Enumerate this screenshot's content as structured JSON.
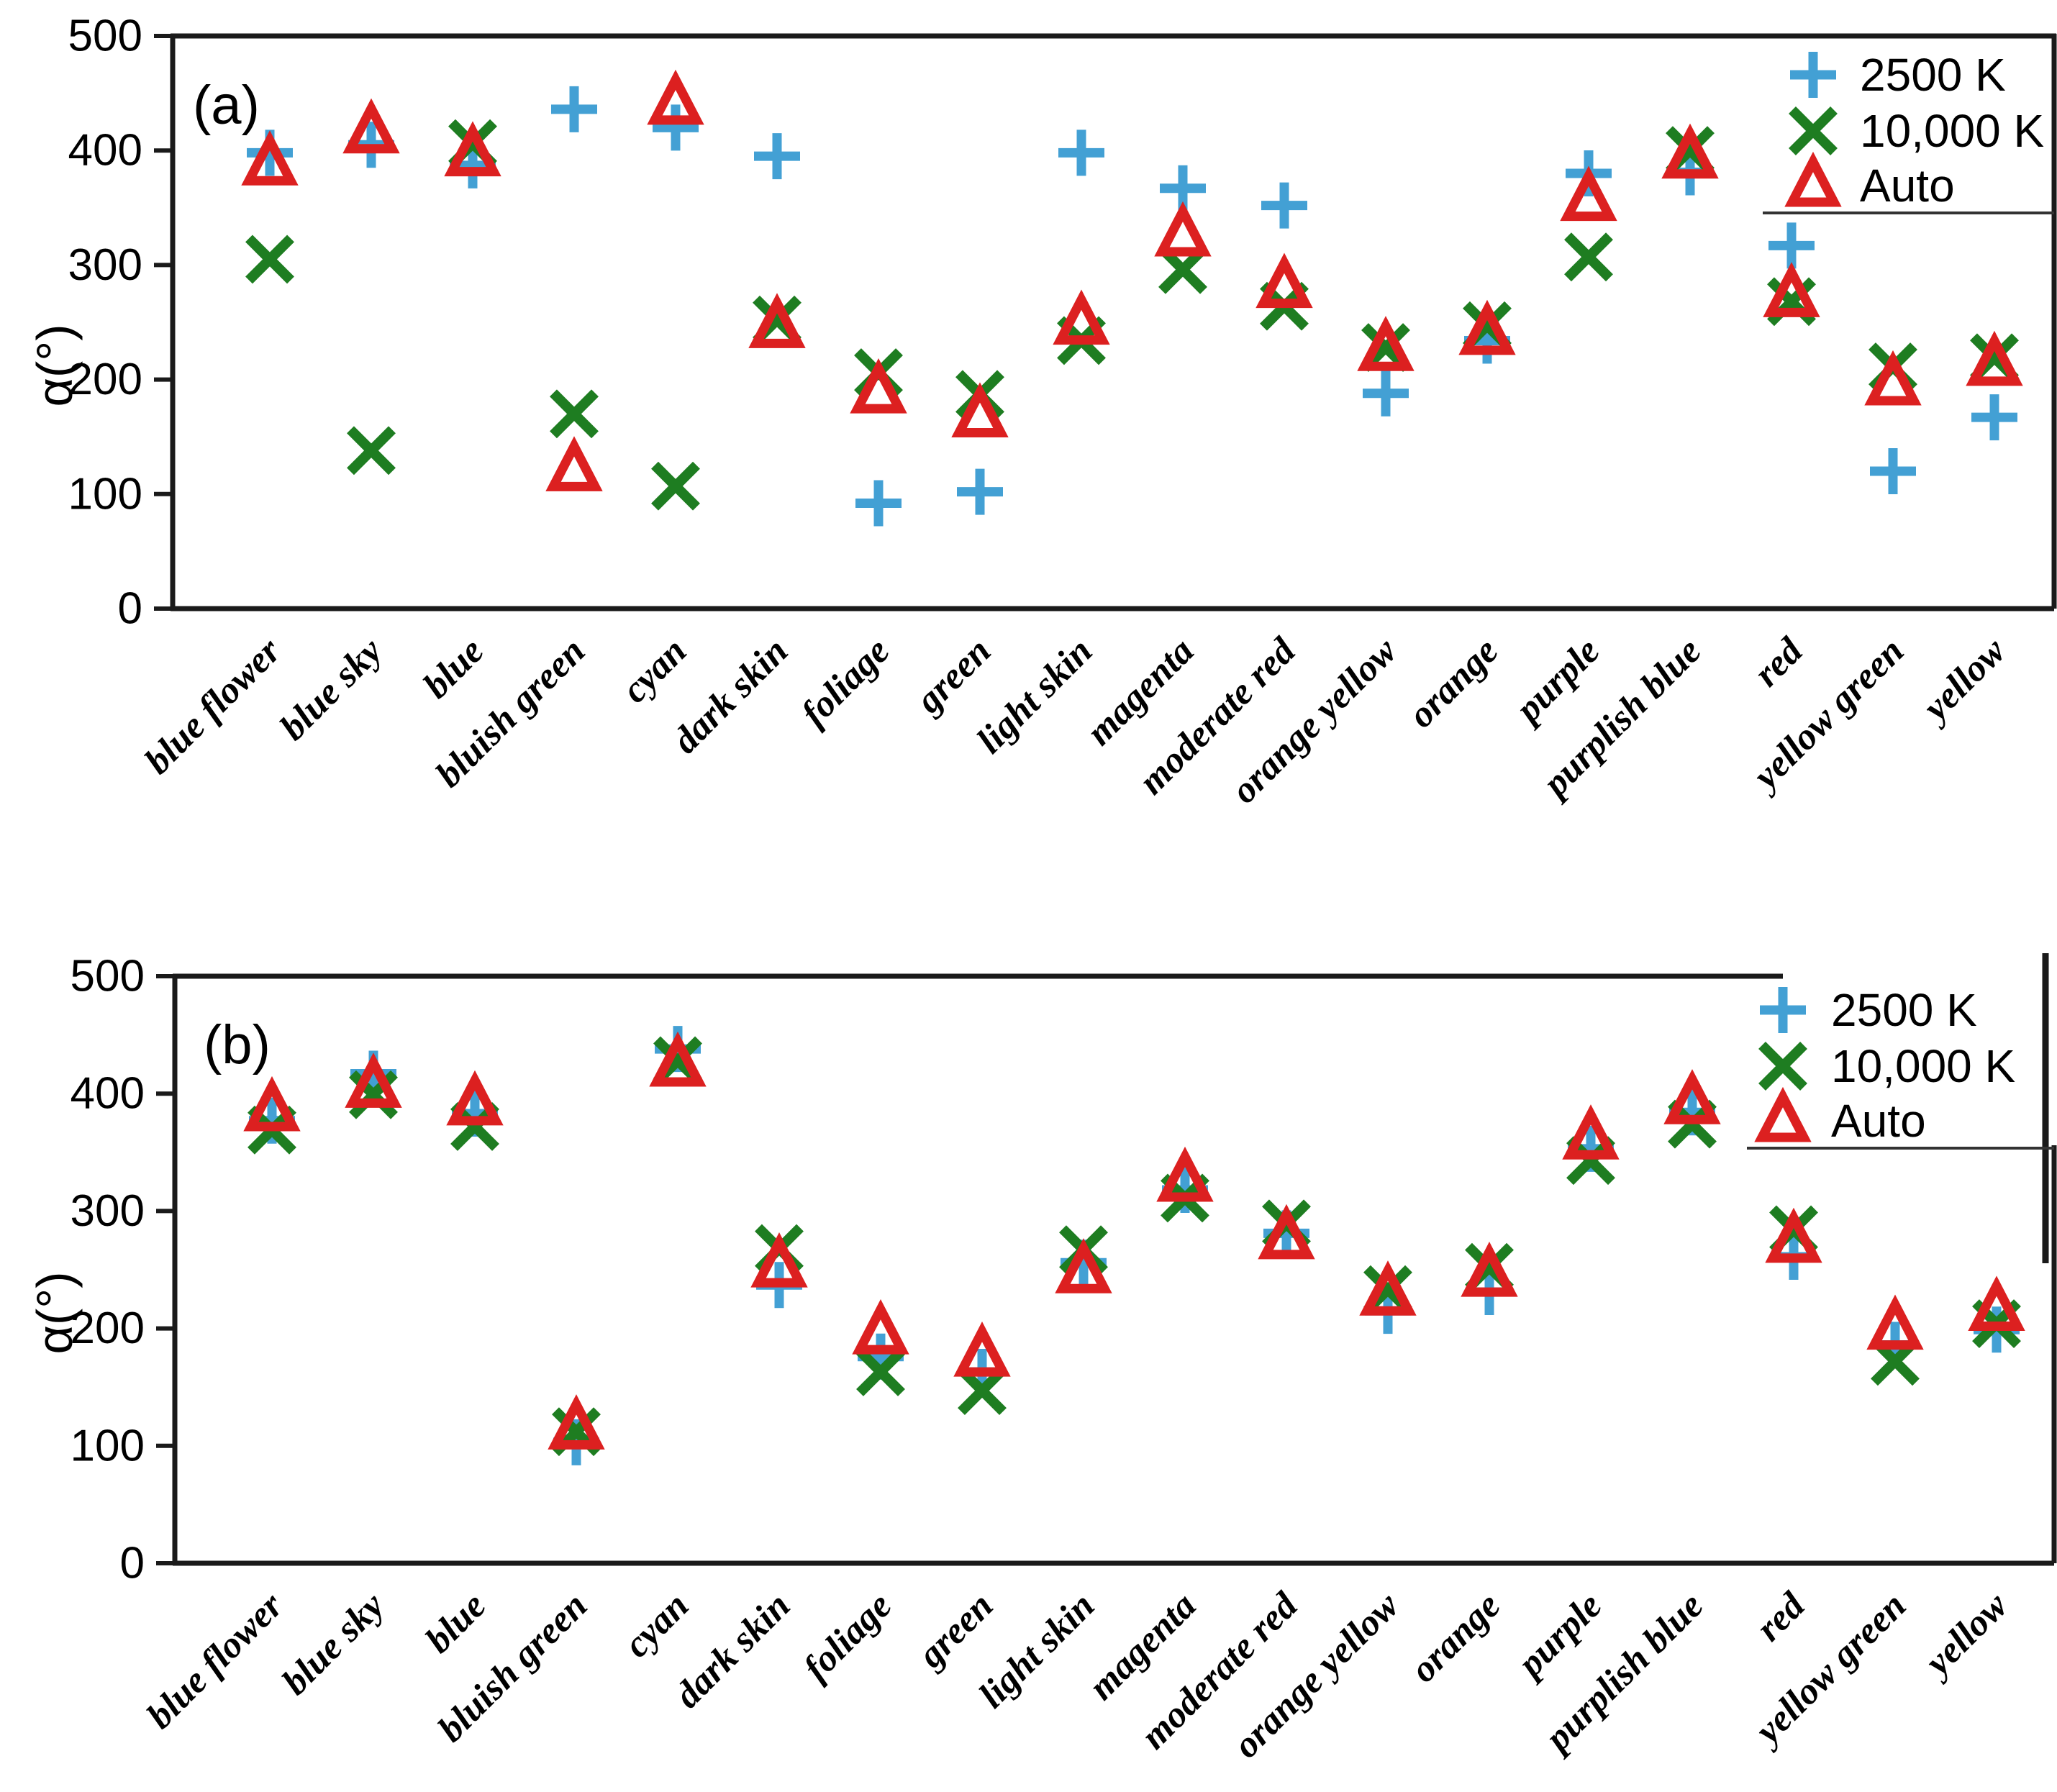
{
  "figure": {
    "background": "#ffffff",
    "axis_color": "#1a1a1a"
  },
  "chart_data": [
    {
      "panel_label": "(a)",
      "type": "scatter",
      "title": "",
      "xlabel": "",
      "ylabel": "α(°)",
      "ylim": [
        0,
        500
      ],
      "yticks": [
        0,
        100,
        200,
        300,
        400,
        500
      ],
      "grid": false,
      "legend_position": "top-right",
      "categories": [
        "blue flower",
        "blue sky",
        "blue",
        "bluish green",
        "cyan",
        "dark skin",
        "foliage",
        "green",
        "light skin",
        "magenta",
        "moderate red",
        "orange yellow",
        "orange",
        "purple",
        "purplish blue",
        "red",
        "yellow green",
        "yellow"
      ],
      "series": [
        {
          "name": "2500 K",
          "marker": "plus",
          "color": "#43A0D4",
          "values": [
            398,
            405,
            387,
            436,
            420,
            395,
            92,
            102,
            398,
            367,
            352,
            188,
            234,
            380,
            381,
            317,
            120,
            167
          ]
        },
        {
          "name": "10,000 K",
          "marker": "x",
          "color": "#1E7D21",
          "values": [
            305,
            138,
            406,
            170,
            107,
            252,
            206,
            187,
            234,
            296,
            264,
            228,
            247,
            307,
            400,
            268,
            211,
            219
          ]
        },
        {
          "name": "Auto",
          "marker": "triangle",
          "color": "#DC2020",
          "values": [
            388,
            416,
            396,
            121,
            441,
            246,
            189,
            168,
            249,
            326,
            281,
            226,
            240,
            357,
            394,
            273,
            196,
            213
          ]
        }
      ]
    },
    {
      "panel_label": "(b)",
      "type": "scatter",
      "title": "",
      "xlabel": "",
      "ylabel": "α(°)",
      "ylim": [
        0,
        500
      ],
      "yticks": [
        0,
        100,
        200,
        300,
        400,
        500
      ],
      "grid": false,
      "legend_position": "top-right",
      "categories": [
        "blue flower",
        "blue sky",
        "blue",
        "bluish green",
        "cyan",
        "dark skin",
        "foliage",
        "green",
        "light skin",
        "magenta",
        "moderate red",
        "orange yellow",
        "orange",
        "purple",
        "purplish blue",
        "red",
        "yellow green",
        "yellow"
      ],
      "series": [
        {
          "name": "2500 K",
          "marker": "plus",
          "color": "#43A0D4",
          "values": [
            377,
            417,
            383,
            103,
            438,
            237,
            176,
            163,
            256,
            318,
            281,
            215,
            231,
            353,
            384,
            261,
            186,
            199
          ]
        },
        {
          "name": "10,000 K",
          "marker": "x",
          "color": "#1E7D21",
          "values": [
            369,
            399,
            372,
            112,
            428,
            268,
            163,
            147,
            267,
            311,
            289,
            233,
            252,
            343,
            374,
            284,
            172,
            204
          ]
        },
        {
          "name": "Auto",
          "marker": "triangle",
          "color": "#DC2020",
          "values": [
            386,
            406,
            391,
            115,
            424,
            253,
            196,
            177,
            248,
            326,
            277,
            229,
            245,
            362,
            392,
            274,
            200,
            216
          ]
        }
      ]
    }
  ]
}
